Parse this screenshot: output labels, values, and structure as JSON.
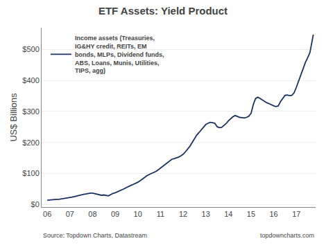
{
  "chart_data": {
    "type": "line",
    "title": "ETF Assets: Yield Product",
    "y_label": "US$ Billions",
    "annotations": [
      "Source: Topdown Charts, Datastream",
      "topdowncharts.com"
    ],
    "x": [
      2006.0,
      2006.1,
      2006.2,
      2006.3,
      2006.4,
      2006.5,
      2006.6,
      2006.7,
      2006.8,
      2006.9,
      2007.0,
      2007.1,
      2007.2,
      2007.3,
      2007.4,
      2007.5,
      2007.6,
      2007.7,
      2007.8,
      2007.9,
      2008.0,
      2008.1,
      2008.2,
      2008.3,
      2008.4,
      2008.5,
      2008.6,
      2008.7,
      2008.8,
      2008.9,
      2009.0,
      2009.1,
      2009.2,
      2009.3,
      2009.4,
      2009.5,
      2009.6,
      2009.7,
      2009.8,
      2009.9,
      2010.0,
      2010.1,
      2010.2,
      2010.3,
      2010.4,
      2010.5,
      2010.6,
      2010.7,
      2010.8,
      2010.9,
      2011.0,
      2011.1,
      2011.2,
      2011.3,
      2011.4,
      2011.5,
      2011.6,
      2011.7,
      2011.8,
      2011.9,
      2012.0,
      2012.1,
      2012.2,
      2012.3,
      2012.4,
      2012.5,
      2012.6,
      2012.7,
      2012.8,
      2012.9,
      2013.0,
      2013.1,
      2013.2,
      2013.3,
      2013.4,
      2013.5,
      2013.6,
      2013.7,
      2013.8,
      2013.9,
      2014.0,
      2014.1,
      2014.2,
      2014.3,
      2014.4,
      2014.5,
      2014.6,
      2014.7,
      2014.8,
      2014.9,
      2015.0,
      2015.1,
      2015.2,
      2015.3,
      2015.4,
      2015.5,
      2015.6,
      2015.7,
      2015.8,
      2015.9,
      2016.0,
      2016.1,
      2016.2,
      2016.3,
      2016.4,
      2016.5,
      2016.6,
      2016.7,
      2016.8,
      2016.9,
      2017.0,
      2017.1,
      2017.2,
      2017.3,
      2017.4,
      2017.5,
      2017.6,
      2017.75
    ],
    "series": [
      {
        "name": "Income assets (Treasuries,\nIG&HY credit, REITs, EM\nbonds, MLPs, Dividend funds,\nABS, Loans, Munis, Utilities,\nTIPS, agg)",
        "color": "#1a3060",
        "values": [
          14,
          15,
          15,
          16,
          17,
          17,
          18,
          19,
          20,
          21,
          22,
          24,
          26,
          28,
          30,
          32,
          33,
          34,
          36,
          37,
          37,
          35,
          33,
          31,
          30,
          31,
          30,
          28,
          32,
          36,
          38,
          41,
          44,
          47,
          51,
          55,
          59,
          62,
          65,
          68,
          72,
          77,
          83,
          89,
          93,
          97,
          100,
          103,
          107,
          112,
          118,
          124,
          130,
          136,
          142,
          146,
          148,
          150,
          153,
          157,
          162,
          170,
          178,
          188,
          200,
          212,
          224,
          232,
          240,
          248,
          258,
          262,
          265,
          264,
          262,
          251,
          248,
          249,
          254,
          261,
          270,
          277,
          283,
          287,
          284,
          281,
          280,
          279,
          281,
          285,
          294,
          323,
          342,
          346,
          342,
          337,
          332,
          328,
          325,
          321,
          318,
          316,
          318,
          332,
          342,
          352,
          353,
          351,
          352,
          360,
          378,
          398,
          420,
          440,
          458,
          473,
          490,
          548
        ]
      }
    ],
    "ylim": [
      -8,
      570
    ],
    "yticks": [
      {
        "value": 0,
        "label": "$0"
      },
      {
        "value": 100,
        "label": "$100"
      },
      {
        "value": 200,
        "label": "$200"
      },
      {
        "value": 300,
        "label": "$300"
      },
      {
        "value": 400,
        "label": "$400"
      },
      {
        "value": 500,
        "label": "$500"
      }
    ],
    "xlim": [
      2005.75,
      2017.85
    ],
    "xticks": [
      {
        "value": 2006,
        "label": "06"
      },
      {
        "value": 2007,
        "label": "07"
      },
      {
        "value": 2008,
        "label": "08"
      },
      {
        "value": 2009,
        "label": "09"
      },
      {
        "value": 2010,
        "label": "10"
      },
      {
        "value": 2011,
        "label": "11"
      },
      {
        "value": 2012,
        "label": "12"
      },
      {
        "value": 2013,
        "label": "13"
      },
      {
        "value": 2014,
        "label": "14"
      },
      {
        "value": 2015,
        "label": "15"
      },
      {
        "value": 2016,
        "label": "16"
      },
      {
        "value": 2017,
        "label": "17"
      }
    ],
    "grid": true,
    "legend": "upper left"
  }
}
